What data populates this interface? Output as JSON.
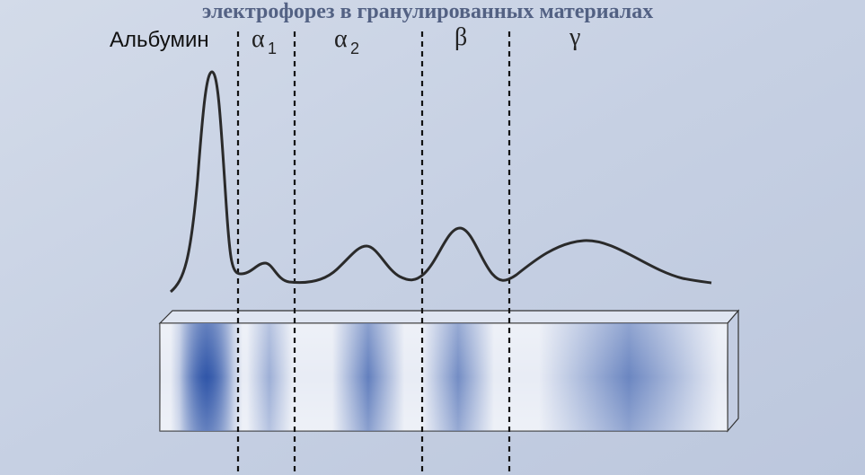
{
  "heading": "электрофорез в гранулированных материалах",
  "labels": {
    "albumin": "Альбумин",
    "alpha1": {
      "symbol": "α",
      "sub": "1"
    },
    "alpha2": {
      "symbol": "α",
      "sub": "2"
    },
    "beta": "β",
    "gamma": "γ"
  }
}
